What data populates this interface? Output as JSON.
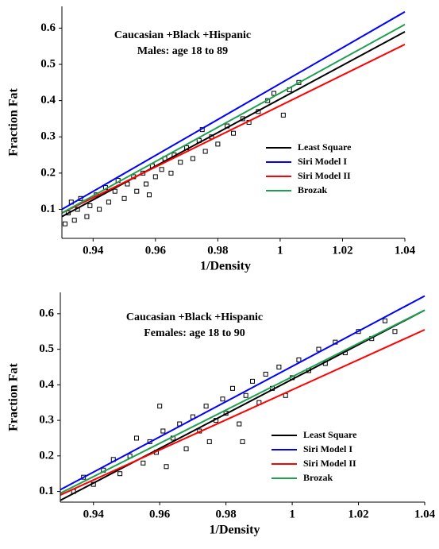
{
  "chart_data": [
    {
      "type": "scatter",
      "title": "Caucasian +Black +Hispanic",
      "subtitle": "Males: age 18 to 89",
      "x_label": "1/Density",
      "y_label": "Fraction Fat",
      "xlim": [
        0.93,
        1.04
      ],
      "ylim": [
        0.02,
        0.66
      ],
      "xticks": [
        0.94,
        0.96,
        0.98,
        1,
        1.02,
        1.04
      ],
      "yticks": [
        0.1,
        0.2,
        0.3,
        0.4,
        0.5,
        0.6
      ],
      "legend": "right",
      "points": {
        "color": "#000000",
        "x": [
          0.931,
          0.932,
          0.933,
          0.934,
          0.935,
          0.936,
          0.938,
          0.939,
          0.941,
          0.942,
          0.944,
          0.945,
          0.947,
          0.948,
          0.95,
          0.951,
          0.953,
          0.954,
          0.956,
          0.957,
          0.959,
          0.96,
          0.962,
          0.963,
          0.965,
          0.966,
          0.968,
          0.97,
          0.972,
          0.974,
          0.976,
          0.978,
          0.98,
          0.983,
          0.985,
          0.988,
          0.99,
          0.993,
          0.996,
          0.998,
          1.001,
          1.003,
          1.006,
          0.975,
          0.958
        ],
        "values": [
          0.06,
          0.09,
          0.12,
          0.07,
          0.1,
          0.13,
          0.08,
          0.11,
          0.14,
          0.1,
          0.16,
          0.12,
          0.15,
          0.18,
          0.13,
          0.17,
          0.19,
          0.15,
          0.2,
          0.17,
          0.22,
          0.19,
          0.21,
          0.24,
          0.2,
          0.25,
          0.23,
          0.27,
          0.24,
          0.29,
          0.26,
          0.3,
          0.28,
          0.33,
          0.31,
          0.35,
          0.34,
          0.37,
          0.4,
          0.42,
          0.36,
          0.43,
          0.45,
          0.32,
          0.14
        ]
      },
      "series": [
        {
          "name": "Least Square",
          "color": "#000000",
          "x": [
            0.93,
            1.04
          ],
          "values": [
            0.08,
            0.59
          ]
        },
        {
          "name": "Siri Model  I",
          "color": "#0000ff",
          "x": [
            0.93,
            1.04
          ],
          "values": [
            0.1,
            0.645
          ]
        },
        {
          "name": "Siri Model II",
          "color": "#ff0000",
          "x": [
            0.93,
            1.04
          ],
          "values": [
            0.09,
            0.555
          ]
        },
        {
          "name": "Brozak",
          "color": "#1fa050",
          "x": [
            0.93,
            1.04
          ],
          "values": [
            0.09,
            0.61
          ]
        }
      ]
    },
    {
      "type": "scatter",
      "title": "Caucasian +Black +Hispanic",
      "subtitle": "Females: age 18 to 90",
      "x_label": "1/Density",
      "y_label": "Fraction Fat",
      "xlim": [
        0.93,
        1.04
      ],
      "ylim": [
        0.07,
        0.66
      ],
      "xticks": [
        0.94,
        0.96,
        0.98,
        1,
        1.02,
        1.04
      ],
      "yticks": [
        0.1,
        0.2,
        0.3,
        0.4,
        0.5,
        0.6
      ],
      "legend": "right",
      "points": {
        "color": "#000000",
        "x": [
          0.934,
          0.937,
          0.94,
          0.943,
          0.946,
          0.948,
          0.951,
          0.953,
          0.955,
          0.957,
          0.959,
          0.961,
          0.962,
          0.964,
          0.966,
          0.968,
          0.97,
          0.972,
          0.974,
          0.975,
          0.977,
          0.979,
          0.98,
          0.982,
          0.984,
          0.986,
          0.988,
          0.99,
          0.992,
          0.994,
          0.996,
          0.998,
          1.0,
          1.002,
          1.005,
          1.008,
          1.01,
          1.013,
          1.016,
          1.02,
          1.024,
          1.028,
          1.031,
          0.96,
          0.985
        ],
        "values": [
          0.1,
          0.14,
          0.12,
          0.16,
          0.19,
          0.15,
          0.2,
          0.25,
          0.18,
          0.24,
          0.21,
          0.27,
          0.17,
          0.25,
          0.29,
          0.22,
          0.31,
          0.27,
          0.34,
          0.24,
          0.3,
          0.36,
          0.32,
          0.39,
          0.29,
          0.37,
          0.41,
          0.35,
          0.43,
          0.39,
          0.45,
          0.37,
          0.42,
          0.47,
          0.44,
          0.5,
          0.46,
          0.52,
          0.49,
          0.55,
          0.53,
          0.58,
          0.55,
          0.34,
          0.24
        ]
      },
      "series": [
        {
          "name": "Least Square",
          "color": "#000000",
          "x": [
            0.93,
            1.04
          ],
          "values": [
            0.075,
            0.61
          ]
        },
        {
          "name": "Siri Model I",
          "color": "#0000ff",
          "x": [
            0.93,
            1.04
          ],
          "values": [
            0.105,
            0.65
          ]
        },
        {
          "name": "Siri Model II",
          "color": "#ff0000",
          "x": [
            0.93,
            1.04
          ],
          "values": [
            0.09,
            0.555
          ]
        },
        {
          "name": "Brozak",
          "color": "#1fa050",
          "x": [
            0.93,
            1.04
          ],
          "values": [
            0.095,
            0.61
          ]
        }
      ]
    }
  ]
}
